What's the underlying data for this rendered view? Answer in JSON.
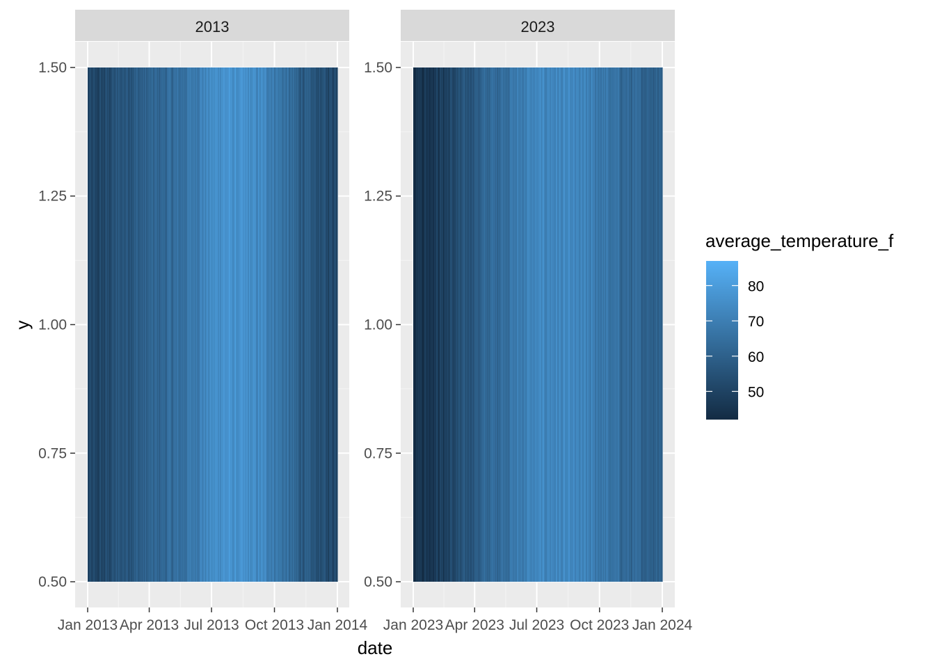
{
  "chart_data": {
    "type": "heatmap",
    "xlabel": "date",
    "ylabel": "y",
    "ylim": [
      0.45,
      1.55
    ],
    "y_ticks": [
      0.5,
      0.75,
      1.0,
      1.25,
      1.5
    ],
    "y_tick_labels": [
      "0.50",
      "0.75",
      "1.00",
      "1.25",
      "1.50"
    ],
    "tile_y_range": [
      0.5,
      1.5
    ],
    "grid": true,
    "legend": {
      "title": "average_temperature_f",
      "position": "right",
      "min": 42,
      "max": 87,
      "breaks": [
        50,
        60,
        70,
        80
      ],
      "labels": [
        "50",
        "60",
        "70",
        "80"
      ],
      "low_color": "#132B43",
      "high_color": "#56B1F7"
    },
    "panels": [
      {
        "strip": "2013",
        "x_ticks": [
          "2013-01-01",
          "2013-04-01",
          "2013-07-01",
          "2013-10-01",
          "2014-01-01"
        ],
        "x_tick_labels": [
          "Jan 2013",
          "Apr 2013",
          "Jul 2013",
          "Oct 2013",
          "Jan 2014"
        ],
        "x_range": [
          "2013-01-01",
          "2013-12-31"
        ],
        "monthly_mean_temperature_f": [
          50,
          56,
          59,
          62,
          65,
          72,
          77,
          75,
          73,
          65,
          57,
          53
        ]
      },
      {
        "strip": "2023",
        "x_ticks": [
          "2023-01-01",
          "2023-04-01",
          "2023-07-01",
          "2023-10-01",
          "2024-01-01"
        ],
        "x_tick_labels": [
          "Jan 2023",
          "Apr 2023",
          "Jul 2023",
          "Oct 2023",
          "Jan 2024"
        ],
        "x_range": [
          "2023-01-01",
          "2023-12-31"
        ],
        "monthly_mean_temperature_f": [
          46,
          49,
          55,
          62,
          66,
          71,
          73,
          72,
          70,
          66,
          62,
          61
        ]
      }
    ]
  }
}
